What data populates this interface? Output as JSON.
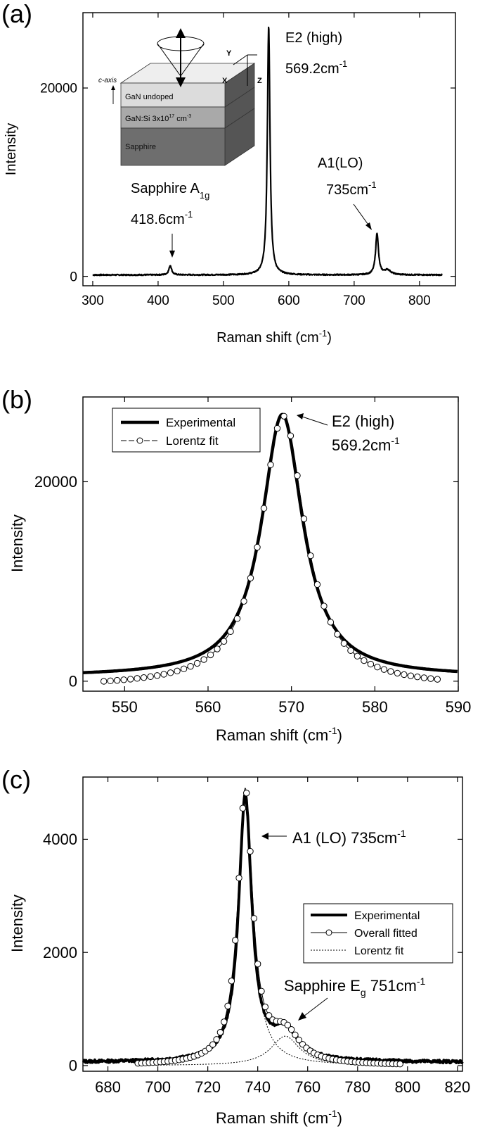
{
  "chart_data": [
    {
      "panel_label": "(a)",
      "type": "line",
      "xlabel": "Raman shift",
      "xlabel_unit_base": "(cm",
      "xlabel_unit_sup": "-1",
      "xlabel_unit_close": ")",
      "ylabel": "Intensity",
      "xlim": [
        285,
        855
      ],
      "ylim": [
        -1000,
        28000
      ],
      "xticks": [
        300,
        400,
        500,
        600,
        700,
        800
      ],
      "yticks": [
        0,
        20000
      ],
      "baseline": 150,
      "peaks": [
        {
          "x": 418.6,
          "height": 1000,
          "gamma": 2.5
        },
        {
          "x": 569.2,
          "height": 26500,
          "gamma": 2.4
        },
        {
          "x": 735,
          "height": 4400,
          "gamma": 2.6
        },
        {
          "x": 751,
          "height": 500,
          "gamma": 6
        }
      ],
      "annotations": {
        "e2_name": "E2 (high)",
        "e2_pos": "569.2cm",
        "e2_pos_sup": "-1",
        "a1_name": "A1(LO)",
        "a1_pos": "735cm",
        "a1_pos_sup": "-1",
        "sapphire_name": "Sapphire A",
        "sapphire_sub": "1g",
        "sapphire_pos": "418.6cm",
        "sapphire_pos_sup": "-1"
      },
      "inset": {
        "layer_top": "GaN undoped",
        "layer_mid": "GaN:Si  3x10",
        "layer_mid_sup": "17",
        "layer_mid_unit": "cm",
        "layer_mid_unit_sup": "-3",
        "layer_bottom": "Sapphire",
        "c_axis": "c-axis",
        "axis_y": "Y",
        "axis_x": "X",
        "axis_z": "Z",
        "colors": {
          "top": "#dcdcdc",
          "mid": "#a9a9a9",
          "bottom": "#6e6e6e"
        }
      }
    },
    {
      "panel_label": "(b)",
      "type": "line",
      "xlabel": "Raman shift",
      "xlabel_unit_base": "(cm",
      "xlabel_unit_sup": "-1",
      "xlabel_unit_close": ")",
      "ylabel": "Intensity",
      "xlim": [
        545,
        590
      ],
      "ylim": [
        -1000,
        28500
      ],
      "xticks": [
        550,
        560,
        570,
        580,
        590
      ],
      "yticks": [
        0,
        20000
      ],
      "series": [
        {
          "name": "Experimental",
          "style": "thick-line",
          "model": {
            "center": 568.9,
            "height": 26300,
            "gamma": 3.0,
            "offset": 450
          }
        },
        {
          "name": "Lorentz fit",
          "style": "line-circles",
          "x_range": [
            547.5,
            587.5
          ],
          "x_step": 0.8,
          "model": {
            "center": 569.0,
            "height": 27200,
            "gamma": 3.2,
            "offset": -600
          }
        }
      ],
      "annotations": {
        "e2_name": "E2 (high)",
        "e2_pos": "569.2cm",
        "e2_pos_sup": "-1"
      }
    },
    {
      "panel_label": "(c)",
      "type": "line",
      "xlabel": "Raman shift",
      "xlabel_unit_base": "(cm",
      "xlabel_unit_sup": "-1",
      "xlabel_unit_close": ")",
      "ylabel": "Intensity",
      "xlim": [
        670,
        822
      ],
      "ylim": [
        -100,
        5100
      ],
      "xticks": [
        680,
        700,
        720,
        740,
        760,
        780,
        800,
        820
      ],
      "yticks": [
        0,
        2000,
        4000
      ],
      "series": [
        {
          "name": "Experimental",
          "style": "thick-line",
          "model": {
            "components": [
              {
                "center": 735,
                "height": 4650,
                "gamma": 3.2
              },
              {
                "center": 751,
                "height": 500,
                "gamma": 6.5
              }
            ],
            "offset": 60
          }
        },
        {
          "name": "Overall fitted",
          "style": "line-circles",
          "x_range": [
            692,
            798
          ],
          "x_step": 1.5,
          "model": {
            "components": [
              {
                "center": 735,
                "height": 4820,
                "gamma": 3.6
              },
              {
                "center": 751,
                "height": 520,
                "gamma": 7
              }
            ],
            "offset": 0
          }
        },
        {
          "name": "Lorentz fit",
          "style": "dotted",
          "x_range": [
            692,
            798
          ],
          "components": [
            {
              "center": 735,
              "height": 4820,
              "gamma": 3.6
            },
            {
              "center": 751,
              "height": 520,
              "gamma": 7
            }
          ]
        }
      ],
      "annotations": {
        "a1_text": "A1 (LO) 735cm",
        "a1_sup": "-1",
        "sapphire_text": "Sapphire E",
        "sapphire_sub": "g",
        "sapphire_pos": " 751cm",
        "sapphire_pos_sup": "-1"
      }
    }
  ]
}
